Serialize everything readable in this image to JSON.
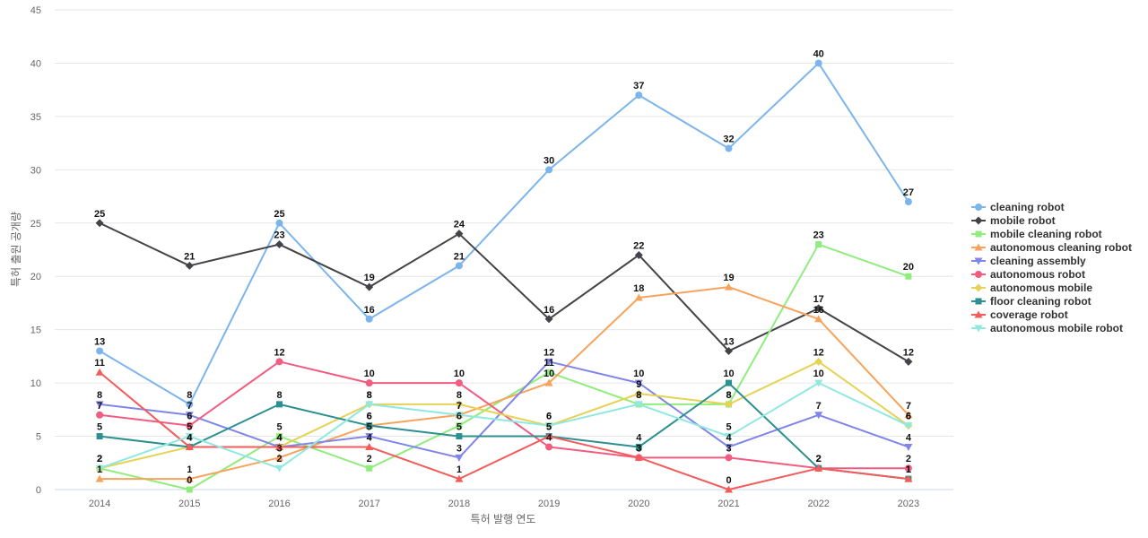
{
  "chart_data": {
    "type": "line",
    "xlabel": "특허 발행 연도",
    "ylabel": "특허 출원 공개량",
    "ylim": [
      0,
      45
    ],
    "yticks": [
      0,
      5,
      10,
      15,
      20,
      25,
      30,
      35,
      40,
      45
    ],
    "grid": true,
    "legend_position": "right",
    "categories": [
      "2014",
      "2015",
      "2016",
      "2017",
      "2018",
      "2019",
      "2020",
      "2021",
      "2022",
      "2023"
    ],
    "series": [
      {
        "name": "cleaning robot",
        "color": "#7cb5ec",
        "marker": "circle",
        "values": [
          13,
          8,
          25,
          16,
          21,
          30,
          37,
          32,
          40,
          27
        ]
      },
      {
        "name": "mobile robot",
        "color": "#434348",
        "marker": "diamond",
        "values": [
          25,
          21,
          23,
          19,
          24,
          16,
          22,
          13,
          17,
          12
        ]
      },
      {
        "name": "mobile cleaning robot",
        "color": "#90ed7d",
        "marker": "square",
        "values": [
          2,
          0,
          5,
          2,
          6,
          11,
          8,
          8,
          23,
          20
        ]
      },
      {
        "name": "autonomous cleaning robot",
        "color": "#f7a35c",
        "marker": "triangle",
        "values": [
          1,
          1,
          3,
          6,
          7,
          10,
          18,
          19,
          16,
          7
        ]
      },
      {
        "name": "cleaning assembly",
        "color": "#8085e9",
        "marker": "triangle-down",
        "values": [
          8,
          7,
          4,
          5,
          3,
          12,
          10,
          4,
          7,
          4
        ]
      },
      {
        "name": "autonomous robot",
        "color": "#f15c80",
        "marker": "circle",
        "values": [
          7,
          6,
          12,
          10,
          10,
          4,
          3,
          3,
          2,
          2
        ]
      },
      {
        "name": "autonomous mobile",
        "color": "#e4d354",
        "marker": "diamond",
        "values": [
          2,
          4,
          4,
          8,
          8,
          6,
          9,
          8,
          12,
          6
        ]
      },
      {
        "name": "floor cleaning robot",
        "color": "#2b908f",
        "marker": "square",
        "values": [
          5,
          4,
          8,
          6,
          5,
          5,
          4,
          10,
          2,
          1
        ]
      },
      {
        "name": "coverage robot",
        "color": "#f45b5b",
        "marker": "triangle",
        "values": [
          11,
          4,
          4,
          4,
          1,
          5,
          3,
          0,
          2,
          1
        ]
      },
      {
        "name": "autonomous mobile robot",
        "color": "#91e8e1",
        "marker": "triangle-down",
        "values": [
          2,
          5,
          2,
          8,
          7,
          6,
          8,
          5,
          10,
          6
        ]
      }
    ]
  }
}
